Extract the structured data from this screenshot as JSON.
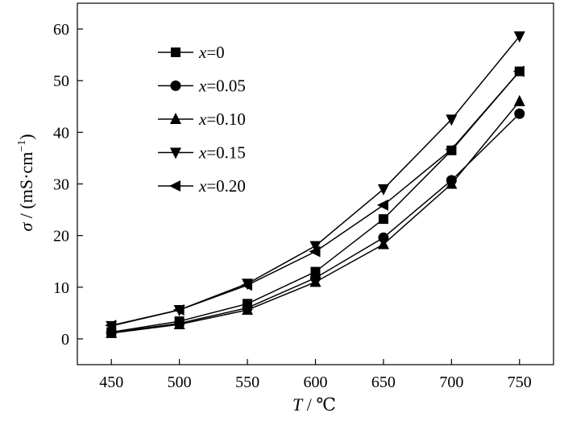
{
  "chart_data": {
    "type": "line",
    "title": "",
    "x": [
      450,
      500,
      550,
      600,
      650,
      700,
      750
    ],
    "xlim": [
      425,
      775
    ],
    "ylim": [
      -5,
      65
    ],
    "xticks": [
      450,
      500,
      550,
      600,
      650,
      700,
      750
    ],
    "yticks": [
      0,
      10,
      20,
      30,
      40,
      50,
      60
    ],
    "xlabel": {
      "var": "T",
      "unit": " / ℃"
    },
    "ylabel": {
      "var": "σ",
      "unit": " / (mS·cm",
      "sup": "−1",
      "close": ")"
    },
    "grid": false,
    "legend_position": "top-left",
    "series": [
      {
        "name": "x=0",
        "var": "x",
        "value": "=0",
        "marker": "square",
        "values": [
          1.3,
          3.4,
          6.8,
          13.0,
          23.2,
          36.5,
          51.8
        ]
      },
      {
        "name": "x=0.05",
        "var": "x",
        "value": "=0.05",
        "marker": "circle",
        "values": [
          1.2,
          3.0,
          6.0,
          11.8,
          19.6,
          30.7,
          43.6
        ]
      },
      {
        "name": "x=0.10",
        "var": "x",
        "value": "=0.10",
        "marker": "triangle-up",
        "values": [
          1.1,
          2.8,
          5.6,
          11.0,
          18.3,
          30.0,
          46.0
        ]
      },
      {
        "name": "x=0.15",
        "var": "x",
        "value": "=0.15",
        "marker": "triangle-down",
        "values": [
          2.5,
          5.6,
          10.7,
          18.0,
          29.0,
          42.5,
          58.6
        ]
      },
      {
        "name": "x=0.20",
        "var": "x",
        "value": "=0.20",
        "marker": "triangle-left",
        "values": [
          2.6,
          5.6,
          10.4,
          16.9,
          25.9,
          36.7,
          51.8
        ]
      }
    ]
  }
}
